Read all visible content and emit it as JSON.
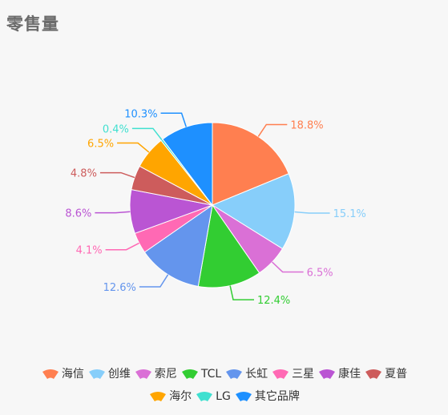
{
  "header": {
    "title": "零售量"
  },
  "colors": {
    "海信": "#ff7f50",
    "创维": "#87cefa",
    "索尼": "#da70d6",
    "TCL": "#32cd32",
    "长虹": "#6495ed",
    "三星": "#ff69b4",
    "康佳": "#ba55d3",
    "夏普": "#cd5c5c",
    "海尔": "#ffa500",
    "LG": "#40e0d0",
    "其它品牌": "#1e90ff"
  },
  "chart_data": {
    "type": "pie",
    "title": "零售量",
    "slices": [
      {
        "name": "海信",
        "value": 18.8,
        "label": "18.8%"
      },
      {
        "name": "创维",
        "value": 15.1,
        "label": "15.1%"
      },
      {
        "name": "索尼",
        "value": 6.5,
        "label": "6.5%"
      },
      {
        "name": "TCL",
        "value": 12.4,
        "label": "12.4%"
      },
      {
        "name": "长虹",
        "value": 12.6,
        "label": "12.6%"
      },
      {
        "name": "三星",
        "value": 4.1,
        "label": "4.1%"
      },
      {
        "name": "康佳",
        "value": 8.6,
        "label": "8.6%"
      },
      {
        "name": "夏普",
        "value": 4.8,
        "label": "4.8%"
      },
      {
        "name": "海尔",
        "value": 6.5,
        "label": "6.5%"
      },
      {
        "name": "LG",
        "value": 0.4,
        "label": "0.4%"
      },
      {
        "name": "其它品牌",
        "value": 10.3,
        "label": "10.3%"
      }
    ],
    "legend_position": "bottom",
    "legend_rows": [
      [
        "海信",
        "创维",
        "索尼",
        "TCL",
        "长虹",
        "三星",
        "康佳",
        "夏普"
      ],
      [
        "海尔",
        "LG",
        "其它品牌"
      ]
    ]
  }
}
